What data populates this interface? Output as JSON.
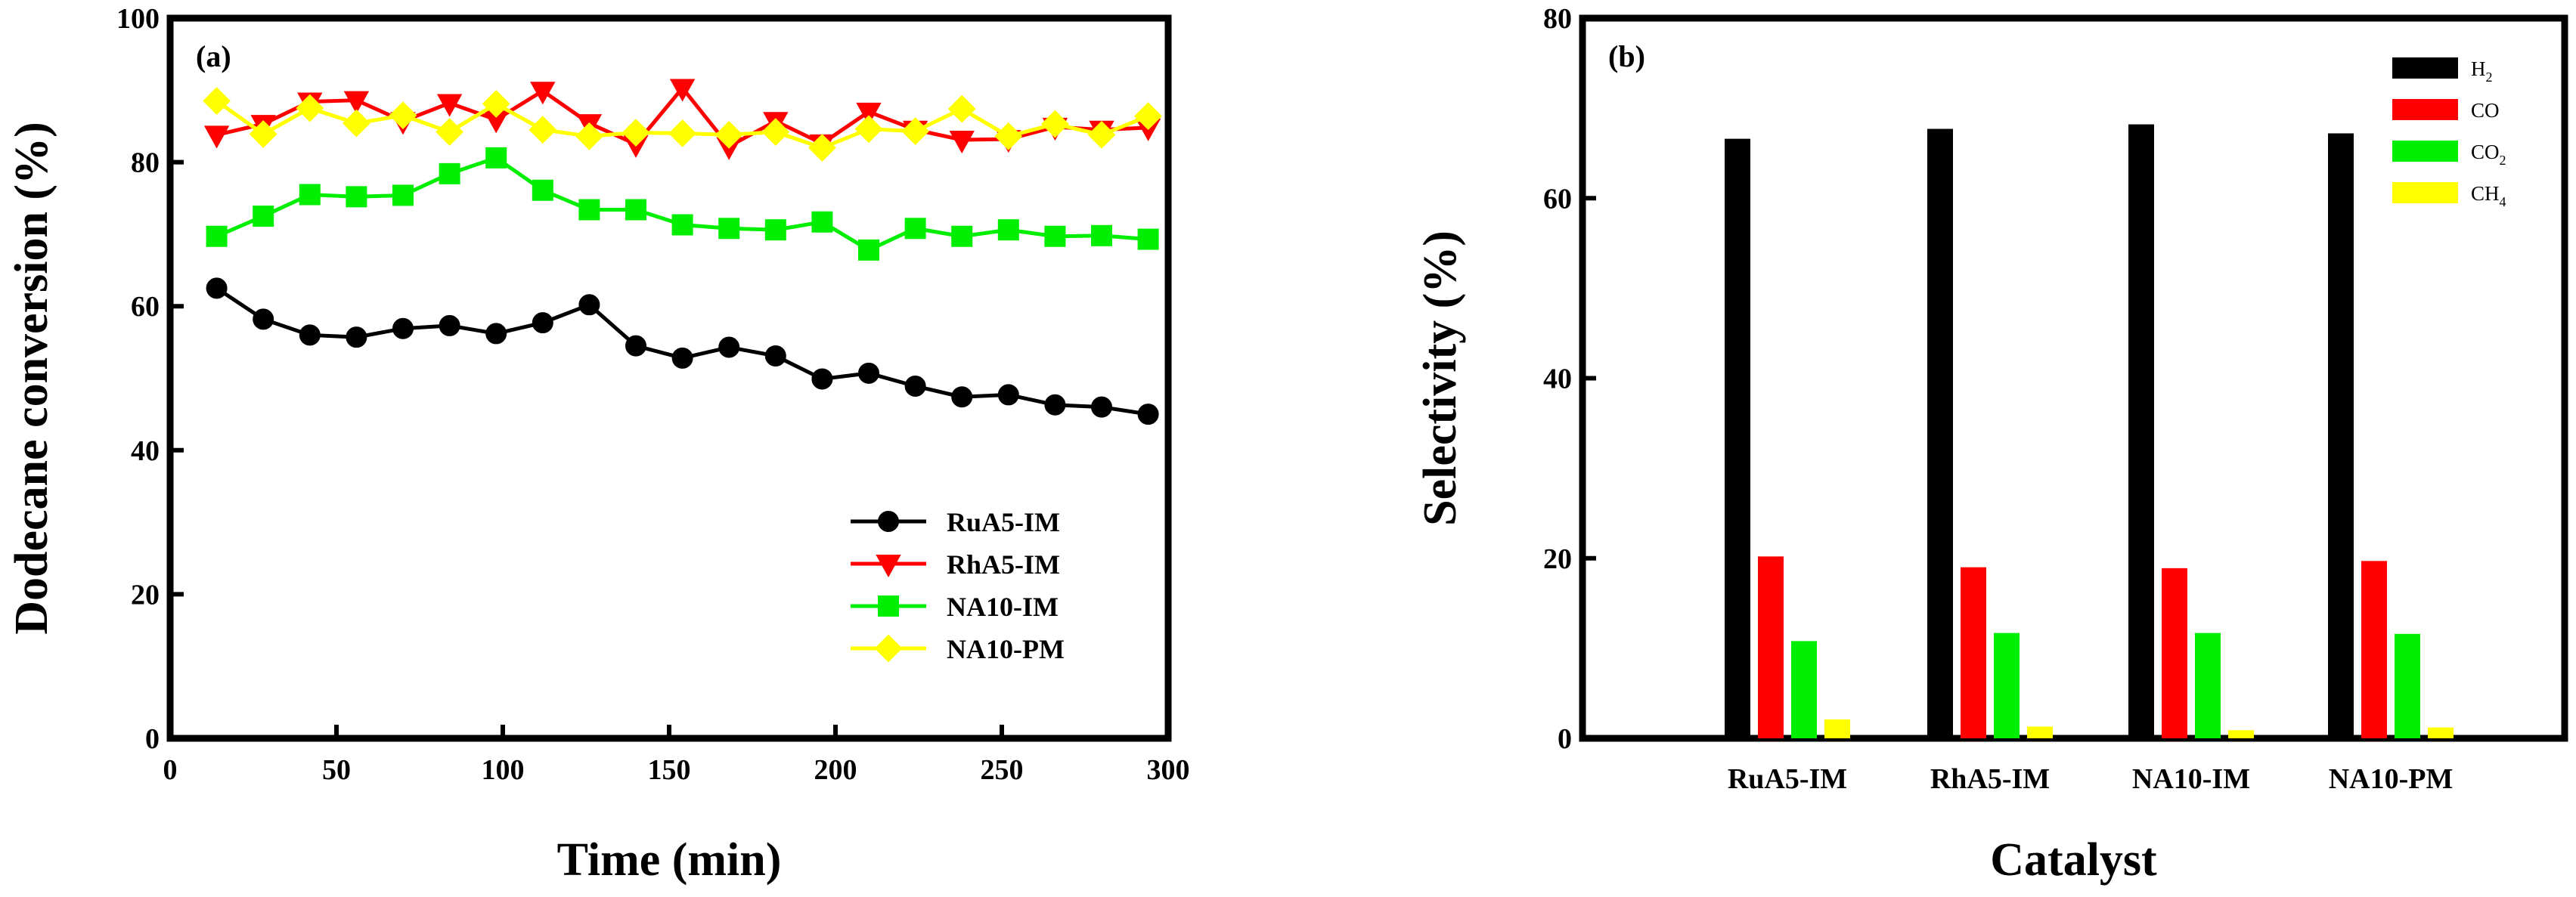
{
  "chart_data": [
    {
      "type": "line",
      "panel_label": "(a)",
      "xlabel": "Time (min)",
      "ylabel": "Dodecane conversion (%)",
      "xlim": [
        0,
        300
      ],
      "ylim": [
        0,
        100
      ],
      "xticks": [
        0,
        50,
        100,
        150,
        200,
        250,
        300
      ],
      "yticks": [
        0,
        20,
        40,
        60,
        80,
        100
      ],
      "x": [
        14,
        28,
        42,
        56,
        70,
        84,
        98,
        112,
        126,
        140,
        154,
        168,
        182,
        196,
        210,
        224,
        238,
        252,
        266,
        280,
        294
      ],
      "legend_position": "lower-right",
      "series": [
        {
          "name": "RuA5-IM",
          "color": "#000000",
          "marker": "circle",
          "values": [
            62.5,
            58.2,
            56.0,
            55.7,
            56.9,
            57.3,
            56.2,
            57.7,
            60.2,
            54.5,
            52.8,
            54.3,
            53.1,
            49.9,
            50.7,
            48.9,
            47.4,
            47.7,
            46.3,
            46.0,
            45.0
          ]
        },
        {
          "name": "RhA5-IM",
          "color": "#ff0000",
          "marker": "triangle-down",
          "values": [
            83.8,
            85.3,
            88.4,
            88.6,
            85.7,
            88.2,
            85.9,
            89.9,
            85.4,
            82.5,
            90.3,
            82.2,
            85.7,
            82.6,
            87.0,
            84.5,
            83.1,
            83.2,
            84.9,
            84.5,
            84.8
          ]
        },
        {
          "name": "NA10-IM",
          "color": "#00ee00",
          "marker": "square",
          "values": [
            69.7,
            72.5,
            75.5,
            75.2,
            75.4,
            78.4,
            80.6,
            76.1,
            73.4,
            73.4,
            71.3,
            70.8,
            70.6,
            71.7,
            67.8,
            70.8,
            69.7,
            70.6,
            69.7,
            69.8,
            69.3
          ]
        },
        {
          "name": "NA10-PM",
          "color": "#ffff00",
          "marker": "diamond",
          "values": [
            88.5,
            83.9,
            87.5,
            85.4,
            86.5,
            84.2,
            88.1,
            84.5,
            83.6,
            84.1,
            84.0,
            83.8,
            84.2,
            82.0,
            84.6,
            84.3,
            87.4,
            83.6,
            85.3,
            83.8,
            86.4
          ]
        }
      ]
    },
    {
      "type": "bar",
      "panel_label": "(b)",
      "xlabel": "Catalyst",
      "ylabel": "Selectivity (%)",
      "ylim": [
        0,
        80
      ],
      "yticks": [
        0,
        20,
        40,
        60,
        80
      ],
      "categories": [
        "RuA5-IM",
        "RhA5-IM",
        "NA10-IM",
        "NA10-PM"
      ],
      "legend_position": "top-right",
      "series": [
        {
          "name": "H",
          "subscript": "2",
          "color": "#000000",
          "values": [
            66.6,
            67.7,
            68.2,
            67.2
          ]
        },
        {
          "name": "CO",
          "subscript": "",
          "color": "#ff0000",
          "values": [
            20.2,
            19.0,
            18.9,
            19.7
          ]
        },
        {
          "name": "CO",
          "subscript": "2",
          "color": "#00ee00",
          "values": [
            10.8,
            11.7,
            11.7,
            11.6
          ]
        },
        {
          "name": "CH",
          "subscript": "4",
          "color": "#ffff00",
          "values": [
            2.1,
            1.3,
            0.9,
            1.2
          ]
        }
      ]
    }
  ]
}
